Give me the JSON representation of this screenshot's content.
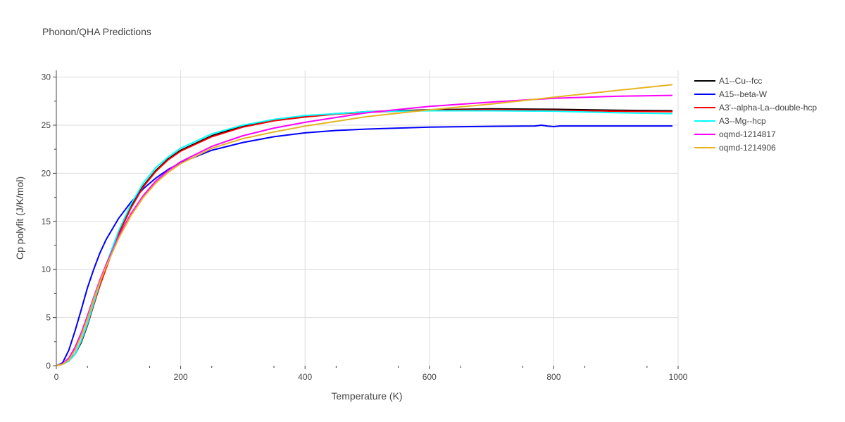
{
  "chart_data": {
    "type": "line",
    "title": "Phonon/QHA Predictions",
    "xlabel": "Temperature (K)",
    "ylabel": "Cp polyfit (J/K/mol)",
    "xlim": [
      0,
      1000
    ],
    "ylim": [
      0,
      30.7
    ],
    "xticks": [
      0,
      200,
      400,
      600,
      800,
      1000
    ],
    "yticks": [
      0,
      5,
      10,
      15,
      20,
      25,
      30
    ],
    "grid": true,
    "legend_position": "top-right",
    "series": [
      {
        "name": "A1--Cu--fcc",
        "color": "#000000",
        "x": [
          0,
          10,
          20,
          30,
          40,
          50,
          60,
          70,
          80,
          100,
          120,
          140,
          160,
          180,
          200,
          250,
          300,
          350,
          400,
          450,
          500,
          600,
          700,
          800,
          900,
          990
        ],
        "y": [
          0,
          0.2,
          0.6,
          1.2,
          2.4,
          4.2,
          6.3,
          8.4,
          10.3,
          13.8,
          16.6,
          18.7,
          20.3,
          21.5,
          22.4,
          23.9,
          24.9,
          25.5,
          25.9,
          26.2,
          26.4,
          26.6,
          26.7,
          26.65,
          26.55,
          26.5
        ]
      },
      {
        "name": "A15--beta-W",
        "color": "#0000ff",
        "x": [
          0,
          10,
          20,
          30,
          40,
          50,
          60,
          70,
          80,
          100,
          120,
          140,
          160,
          180,
          200,
          250,
          300,
          350,
          400,
          450,
          500,
          600,
          700,
          770,
          780,
          790,
          800,
          810,
          900,
          990
        ],
        "y": [
          0,
          0.3,
          1.6,
          3.6,
          5.8,
          8.1,
          10.0,
          11.7,
          13.1,
          15.3,
          17.0,
          18.4,
          19.5,
          20.4,
          21.1,
          22.4,
          23.2,
          23.8,
          24.2,
          24.45,
          24.6,
          24.8,
          24.88,
          24.92,
          25.0,
          24.9,
          24.85,
          24.92,
          24.92,
          24.92
        ]
      },
      {
        "name": "A3'--alpha-La--double-hcp",
        "color": "#ff0000",
        "x": [
          0,
          10,
          20,
          30,
          40,
          50,
          60,
          70,
          80,
          100,
          120,
          140,
          160,
          180,
          200,
          250,
          300,
          350,
          400,
          450,
          500,
          600,
          700,
          800,
          900,
          990
        ],
        "y": [
          0,
          0.15,
          0.5,
          1.2,
          2.5,
          4.3,
          6.3,
          8.3,
          10.1,
          13.6,
          16.4,
          18.6,
          20.2,
          21.4,
          22.3,
          23.8,
          24.8,
          25.45,
          25.85,
          26.15,
          26.35,
          26.55,
          26.6,
          26.55,
          26.45,
          26.4
        ]
      },
      {
        "name": "A3--Mg--hcp",
        "color": "#00ffff",
        "x": [
          0,
          10,
          20,
          30,
          40,
          50,
          60,
          70,
          80,
          100,
          120,
          140,
          160,
          180,
          200,
          250,
          300,
          350,
          400,
          450,
          500,
          600,
          700,
          800,
          900,
          990
        ],
        "y": [
          0,
          0.15,
          0.5,
          1.2,
          2.6,
          4.4,
          6.5,
          8.6,
          10.5,
          14.0,
          16.8,
          19.0,
          20.6,
          21.7,
          22.6,
          24.1,
          25.0,
          25.6,
          26.0,
          26.2,
          26.4,
          26.5,
          26.5,
          26.45,
          26.3,
          26.2
        ]
      },
      {
        "name": "oqmd-1214817",
        "color": "#ff00ff",
        "x": [
          0,
          10,
          20,
          30,
          40,
          50,
          60,
          70,
          80,
          100,
          120,
          140,
          160,
          180,
          200,
          250,
          300,
          350,
          400,
          450,
          500,
          600,
          700,
          800,
          900,
          990
        ],
        "y": [
          0,
          0.2,
          0.8,
          1.9,
          3.4,
          5.2,
          7.1,
          8.9,
          10.5,
          13.4,
          15.8,
          17.7,
          19.2,
          20.3,
          21.2,
          22.8,
          23.9,
          24.7,
          25.3,
          25.8,
          26.3,
          26.95,
          27.4,
          27.8,
          28.0,
          28.1
        ]
      },
      {
        "name": "oqmd-1214906",
        "color": "#e6b422",
        "x": [
          0,
          10,
          20,
          30,
          40,
          50,
          60,
          70,
          80,
          100,
          120,
          140,
          160,
          180,
          200,
          250,
          300,
          350,
          400,
          450,
          500,
          600,
          700,
          800,
          900,
          990
        ],
        "y": [
          0,
          0.15,
          0.6,
          1.6,
          3.1,
          4.9,
          6.9,
          8.7,
          10.3,
          13.2,
          15.6,
          17.5,
          19.0,
          20.1,
          21.0,
          22.6,
          23.6,
          24.3,
          24.9,
          25.4,
          25.9,
          26.6,
          27.2,
          27.9,
          28.6,
          29.2
        ]
      }
    ]
  }
}
